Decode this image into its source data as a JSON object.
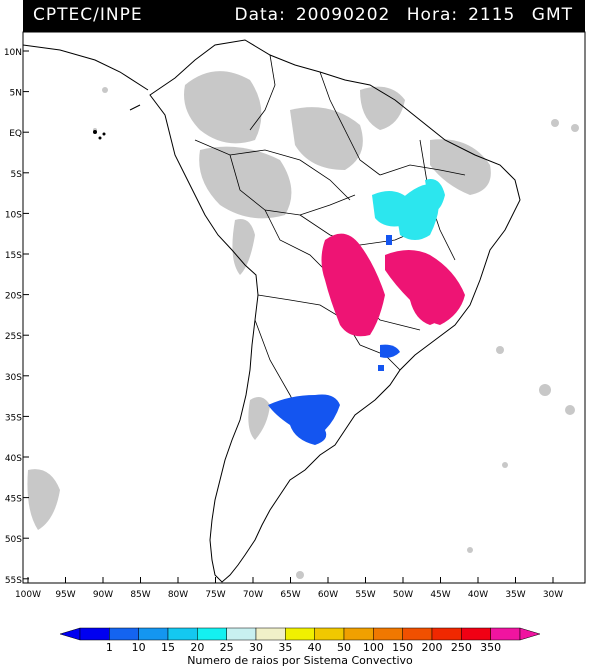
{
  "header": {
    "agency": "CPTEC/INPE",
    "date_label": "Data:",
    "date_value": "20090202",
    "time_label": "Hora:",
    "time_value": "2115",
    "time_zone": "GMT"
  },
  "map": {
    "lat_labels": [
      "10N",
      "5N",
      "EQ",
      "5S",
      "10S",
      "15S",
      "20S",
      "25S",
      "30S",
      "35S",
      "40S",
      "45S",
      "50S",
      "55S"
    ],
    "lon_labels": [
      "100W",
      "95W",
      "90W",
      "85W",
      "80W",
      "75W",
      "70W",
      "65W",
      "60W",
      "55W",
      "50W",
      "45W",
      "40W",
      "35W",
      "30W"
    ],
    "colors": {
      "land_border": "#000000",
      "cloud_gray": "#c8c8c8",
      "cyan": "#2ce6ee",
      "blue": "#1455f0",
      "magenta": "#ee1474"
    }
  },
  "legend": {
    "caption": "Numero de raios por Sistema Convectivo",
    "tick_labels": [
      "1",
      "10",
      "15",
      "20",
      "25",
      "30",
      "35",
      "40",
      "50",
      "100",
      "150",
      "200",
      "250",
      "350"
    ],
    "colors": [
      "#0000f0",
      "#1464f0",
      "#1496f0",
      "#14c8f0",
      "#14f0f0",
      "#c8f0f0",
      "#f0f0c8",
      "#f0f000",
      "#f0c800",
      "#f0a000",
      "#f07800",
      "#f05000",
      "#f02800",
      "#f00014",
      "#f014a0"
    ]
  }
}
